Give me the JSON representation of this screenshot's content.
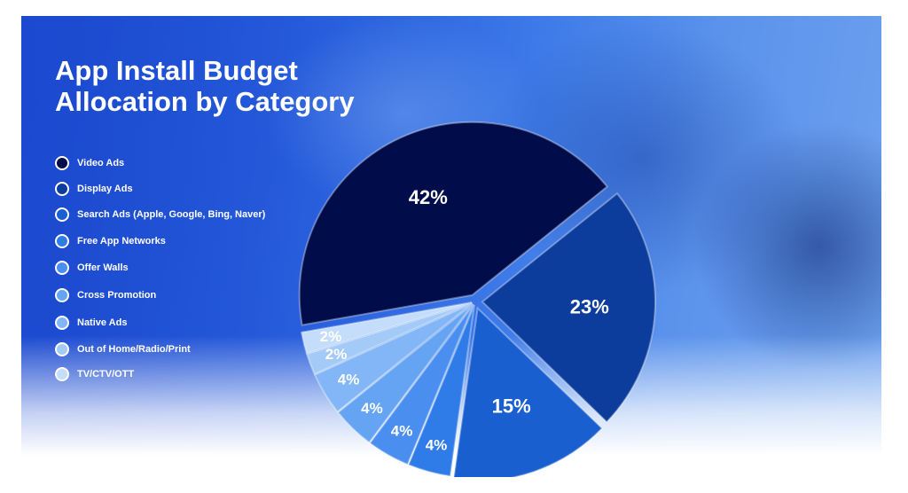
{
  "title_line1": "App Install Budget",
  "title_line2": "Allocation by Category",
  "chart_data": {
    "type": "pie",
    "title": "App Install Budget Allocation by Category",
    "legend_position": "left",
    "slices": [
      {
        "label": "Video Ads",
        "value": 42,
        "value_label": "42%",
        "color": "#000d4a"
      },
      {
        "label": "Display Ads",
        "value": 23,
        "value_label": "23%",
        "color": "#0d3d9c"
      },
      {
        "label": "Search Ads (Apple, Google, Bing, Naver)",
        "value": 15,
        "value_label": "15%",
        "color": "#1a5fd0"
      },
      {
        "label": "Free App Networks",
        "value": 4,
        "value_label": "4%",
        "color": "#2f7ce8"
      },
      {
        "label": "Offer Walls",
        "value": 4,
        "value_label": "4%",
        "color": "#4a8ff0"
      },
      {
        "label": "Cross Promotion",
        "value": 4,
        "value_label": "4%",
        "color": "#65a3f3"
      },
      {
        "label": "Native Ads",
        "value": 4,
        "value_label": "4%",
        "color": "#82b6f6"
      },
      {
        "label": "Out of Home/Radio/Print",
        "value": 2,
        "value_label": "2%",
        "color": "#a4cbf8"
      },
      {
        "label": "TV/CTV/OTT",
        "value": 2,
        "value_label": "2%",
        "color": "#c3ddfa"
      }
    ]
  }
}
